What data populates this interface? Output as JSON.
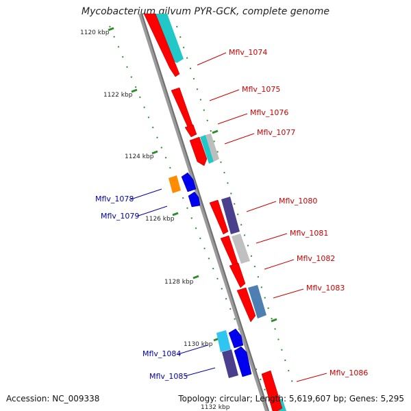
{
  "title": "Mycobacterium gilvum PYR-GCK, complete genome",
  "accession": "Accession: NC_009338",
  "summary": "Topology: circular; Length: 5,619,607 bp; Genes: 5,295",
  "colors": {
    "forward_gene": "#ff0000",
    "reverse_gene": "#0000ee",
    "forward_label": "#cc0000",
    "reverse_label": "#0000aa",
    "backbone": "#888888",
    "tick": "#2d8c2d",
    "cog_cyan": "#22c8c8",
    "cog_slate": "#4a3f8c",
    "cog_gray": "#bdbdbd",
    "cog_steel": "#4d7fb3",
    "cog_orange": "#ff8c00",
    "cog_skyblue": "#2ec5f0"
  },
  "kbp_ticks": [
    "1120 kbp",
    "1122 kbp",
    "1124 kbp",
    "1126 kbp",
    "1128 kbp",
    "1130 kbp",
    "1132 kbp"
  ],
  "gene_labels": {
    "forward": [
      "Mflv_1074",
      "Mflv_1075",
      "Mflv_1076",
      "Mflv_1077",
      "Mflv_1080",
      "Mflv_1081",
      "Mflv_1082",
      "Mflv_1083",
      "Mflv_1086"
    ],
    "reverse": [
      "Mflv_1078",
      "Mflv_1079",
      "Mflv_1084",
      "Mflv_1085"
    ]
  }
}
